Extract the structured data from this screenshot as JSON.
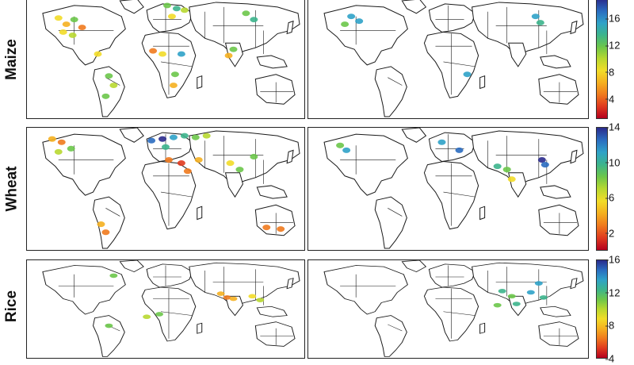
{
  "rows": [
    {
      "label": "Maize",
      "ticks": [
        "4",
        "8",
        "12",
        "16"
      ],
      "tick_values": [
        4,
        8,
        12,
        16
      ],
      "range": [
        1,
        19
      ]
    },
    {
      "label": "Wheat",
      "ticks": [
        "2",
        "6",
        "10",
        "14"
      ],
      "tick_values": [
        2,
        6,
        10,
        14
      ],
      "range": [
        0,
        14
      ]
    },
    {
      "label": "Rice",
      "ticks": [
        "4",
        "8",
        "12",
        "16"
      ],
      "tick_values": [
        4,
        8,
        12,
        16
      ],
      "range": [
        4,
        16
      ]
    }
  ],
  "colors": {
    "colorbar_low": "#b4001e",
    "colorbar_mid": "#f2dc28",
    "colorbar_high": "#2a2a8c",
    "border": "#222222"
  }
}
